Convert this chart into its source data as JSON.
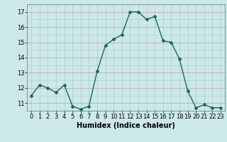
{
  "x": [
    0,
    1,
    2,
    3,
    4,
    5,
    6,
    7,
    8,
    9,
    10,
    11,
    12,
    13,
    14,
    15,
    16,
    17,
    18,
    19,
    20,
    21,
    22,
    23
  ],
  "y": [
    11.5,
    12.2,
    12.0,
    11.7,
    12.2,
    10.8,
    10.6,
    10.8,
    13.1,
    14.8,
    15.2,
    15.5,
    17.0,
    17.0,
    16.5,
    16.7,
    15.1,
    15.0,
    13.9,
    11.8,
    10.7,
    10.9,
    10.7,
    10.7
  ],
  "line_color": "#1a6655",
  "marker": "D",
  "marker_size": 2,
  "bg_color": "#cce8e8",
  "grid_color_v": "#aacfcf",
  "grid_color_h": "#c4a0a0",
  "xlabel": "Humidex (Indice chaleur)",
  "ylim": [
    10.5,
    17.5
  ],
  "xlim": [
    -0.5,
    23.5
  ],
  "yticks": [
    11,
    12,
    13,
    14,
    15,
    16,
    17
  ],
  "xticks": [
    0,
    1,
    2,
    3,
    4,
    5,
    6,
    7,
    8,
    9,
    10,
    11,
    12,
    13,
    14,
    15,
    16,
    17,
    18,
    19,
    20,
    21,
    22,
    23
  ],
  "xlabel_fontsize": 7,
  "tick_fontsize": 6,
  "line_width": 1.0
}
